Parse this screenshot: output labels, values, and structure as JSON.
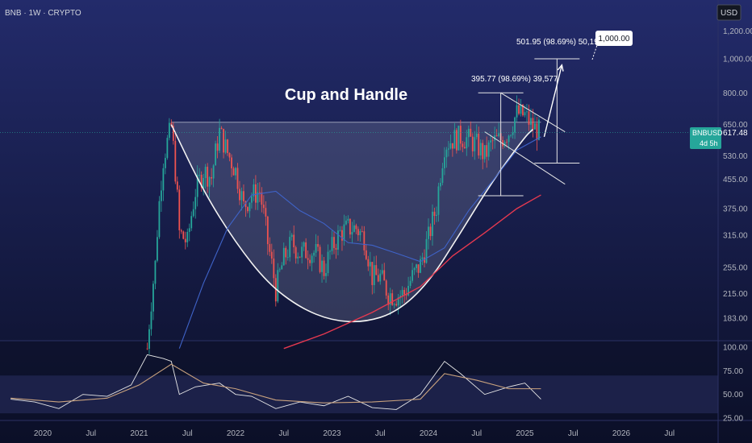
{
  "header": {
    "symbol_line": "BNB · 1W · CRYPTO",
    "currency": "USD"
  },
  "colors": {
    "background": "#0d1230",
    "up_candle": "#26a69a",
    "down_candle": "#ef5350",
    "ma_slow": "#e53950",
    "ma_fast": "#3f63c8",
    "rsi_line": "#e8e8e8",
    "rsi_ma": "#c9a27e",
    "price_badge": "#26a69a"
  },
  "chart_data": [
    {
      "type": "candlestick",
      "title": "Cup and Handle",
      "scale": "log",
      "ylim": [
        150,
        1400
      ],
      "xlim": [
        "2019-09",
        "2026-12"
      ],
      "y_ticks": [
        "1,200.00",
        "1,000.00",
        "800.00",
        "650.00",
        "530.00",
        "455.00",
        "375.00",
        "315.00",
        "255.00",
        "215.00",
        "183.00"
      ],
      "y_tick_values": [
        1200,
        1000,
        800,
        650,
        530,
        455,
        375,
        315,
        255,
        215,
        183
      ],
      "x_ticks": [
        "2020",
        "Jul",
        "2021",
        "Jul",
        "2022",
        "Jul",
        "2023",
        "Jul",
        "2024",
        "Jul",
        "2025",
        "Jul",
        "2026",
        "Jul"
      ],
      "x_tick_dates": [
        "2020-01",
        "2020-07",
        "2021-01",
        "2021-07",
        "2022-01",
        "2022-07",
        "2023-01",
        "2023-07",
        "2024-01",
        "2024-07",
        "2025-01",
        "2025-07",
        "2026-01",
        "2026-07"
      ],
      "last_price": {
        "symbol": "BNBUSD",
        "value": "617.48",
        "countdown": "4d 5h"
      },
      "price_path": [
        [
          "2021-02",
          150
        ],
        [
          "2021-03",
          260
        ],
        [
          "2021-04",
          520
        ],
        [
          "2021-05",
          640
        ],
        [
          "2021-06",
          320
        ],
        [
          "2021-07",
          300
        ],
        [
          "2021-08",
          420
        ],
        [
          "2021-09",
          480
        ],
        [
          "2021-10",
          460
        ],
        [
          "2021-11",
          620
        ],
        [
          "2021-12",
          540
        ],
        [
          "2022-01",
          480
        ],
        [
          "2022-02",
          380
        ],
        [
          "2022-03",
          410
        ],
        [
          "2022-04",
          420
        ],
        [
          "2022-05",
          300
        ],
        [
          "2022-06",
          220
        ],
        [
          "2022-07",
          270
        ],
        [
          "2022-08",
          300
        ],
        [
          "2022-09",
          280
        ],
        [
          "2022-10",
          285
        ],
        [
          "2022-11",
          280
        ],
        [
          "2022-12",
          250
        ],
        [
          "2023-01",
          290
        ],
        [
          "2023-02",
          320
        ],
        [
          "2023-03",
          330
        ],
        [
          "2023-04",
          330
        ],
        [
          "2023-05",
          310
        ],
        [
          "2023-06",
          240
        ],
        [
          "2023-07",
          240
        ],
        [
          "2023-08",
          215
        ],
        [
          "2023-09",
          212
        ],
        [
          "2023-10",
          215
        ],
        [
          "2023-11",
          240
        ],
        [
          "2023-12",
          260
        ],
        [
          "2024-01",
          310
        ],
        [
          "2024-02",
          380
        ],
        [
          "2024-03",
          570
        ],
        [
          "2024-04",
          590
        ],
        [
          "2024-05",
          600
        ],
        [
          "2024-06",
          590
        ],
        [
          "2024-07",
          570
        ],
        [
          "2024-08",
          530
        ],
        [
          "2024-09",
          580
        ],
        [
          "2024-10",
          590
        ],
        [
          "2024-11",
          620
        ],
        [
          "2024-12",
          700
        ],
        [
          "2025-01",
          690
        ],
        [
          "2025-02",
          640
        ],
        [
          "2025-03",
          617.48
        ]
      ],
      "ma_fast_path": [
        [
          "2021-06",
          150
        ],
        [
          "2021-09",
          230
        ],
        [
          "2021-12",
          330
        ],
        [
          "2022-03",
          410
        ],
        [
          "2022-06",
          420
        ],
        [
          "2022-09",
          370
        ],
        [
          "2022-12",
          340
        ],
        [
          "2023-03",
          300
        ],
        [
          "2023-06",
          295
        ],
        [
          "2023-09",
          280
        ],
        [
          "2023-12",
          265
        ],
        [
          "2024-03",
          290
        ],
        [
          "2024-06",
          370
        ],
        [
          "2024-09",
          450
        ],
        [
          "2024-12",
          550
        ],
        [
          "2025-03",
          600
        ]
      ],
      "ma_slow_path": [
        [
          "2022-07",
          150
        ],
        [
          "2022-12",
          165
        ],
        [
          "2023-06",
          190
        ],
        [
          "2023-12",
          225
        ],
        [
          "2024-04",
          275
        ],
        [
          "2024-08",
          320
        ],
        [
          "2024-12",
          375
        ],
        [
          "2025-03",
          410
        ]
      ],
      "cup_curve": [
        [
          "2021-05",
          650
        ],
        [
          "2021-09",
          420
        ],
        [
          "2022-01",
          300
        ],
        [
          "2022-05",
          230
        ],
        [
          "2022-09",
          196
        ],
        [
          "2023-01",
          180
        ],
        [
          "2023-05",
          178
        ],
        [
          "2023-09",
          190
        ],
        [
          "2024-01",
          230
        ],
        [
          "2024-05",
          320
        ],
        [
          "2024-09",
          450
        ],
        [
          "2025-01",
          600
        ],
        [
          "2025-02",
          630
        ]
      ],
      "rim_level": 660,
      "handle_channel": {
        "upper": [
          [
            "2024-10",
            800
          ],
          [
            "2025-06",
            620
          ]
        ],
        "lower": [
          [
            "2024-08",
            620
          ],
          [
            "2025-06",
            440
          ]
        ]
      },
      "measure_first": {
        "x": "2024-10",
        "from": 408,
        "to": 800,
        "label": "395.77 (98.69%) 39,577"
      },
      "measure_second": {
        "x": "2025-05",
        "from": 505,
        "to": 1000,
        "label": "501.95 (98.69%) 50,195"
      },
      "projection_arrow": {
        "from": [
          "2025-03",
          600
        ],
        "to": [
          "2025-05",
          960
        ]
      },
      "target_callout": "1,000.00",
      "rsi_ma_level": 405
    },
    {
      "type": "line",
      "title": "",
      "ylim": [
        20,
        105
      ],
      "y_ticks": [
        "100.00",
        "75.00",
        "50.00",
        "25.00"
      ],
      "y_tick_values": [
        100,
        75,
        50,
        25
      ],
      "overbought": 70,
      "oversold": 30,
      "series": [
        {
          "values": [
            [
              "2019-09",
              45
            ],
            [
              "2019-12",
              42
            ],
            [
              "2020-03",
              35
            ],
            [
              "2020-06",
              50
            ],
            [
              "2020-09",
              48
            ],
            [
              "2020-12",
              60
            ],
            [
              "2021-02",
              92
            ],
            [
              "2021-04",
              88
            ],
            [
              "2021-05",
              85
            ],
            [
              "2021-06",
              50
            ],
            [
              "2021-08",
              58
            ],
            [
              "2021-11",
              62
            ],
            [
              "2022-01",
              50
            ],
            [
              "2022-03",
              48
            ],
            [
              "2022-06",
              35
            ],
            [
              "2022-09",
              42
            ],
            [
              "2022-12",
              38
            ],
            [
              "2023-03",
              48
            ],
            [
              "2023-06",
              36
            ],
            [
              "2023-09",
              34
            ],
            [
              "2023-12",
              50
            ],
            [
              "2024-03",
              85
            ],
            [
              "2024-05",
              72
            ],
            [
              "2024-08",
              50
            ],
            [
              "2024-11",
              58
            ],
            [
              "2025-01",
              62
            ],
            [
              "2025-03",
              45
            ]
          ]
        },
        {
          "values": [
            [
              "2019-09",
              46
            ],
            [
              "2020-03",
              42
            ],
            [
              "2020-09",
              46
            ],
            [
              "2021-01",
              60
            ],
            [
              "2021-05",
              82
            ],
            [
              "2021-09",
              62
            ],
            [
              "2022-01",
              56
            ],
            [
              "2022-06",
              44
            ],
            [
              "2022-12",
              41
            ],
            [
              "2023-06",
              42
            ],
            [
              "2023-12",
              45
            ],
            [
              "2024-03",
              72
            ],
            [
              "2024-07",
              65
            ],
            [
              "2024-11",
              56
            ],
            [
              "2025-03",
              56
            ]
          ]
        }
      ]
    }
  ]
}
